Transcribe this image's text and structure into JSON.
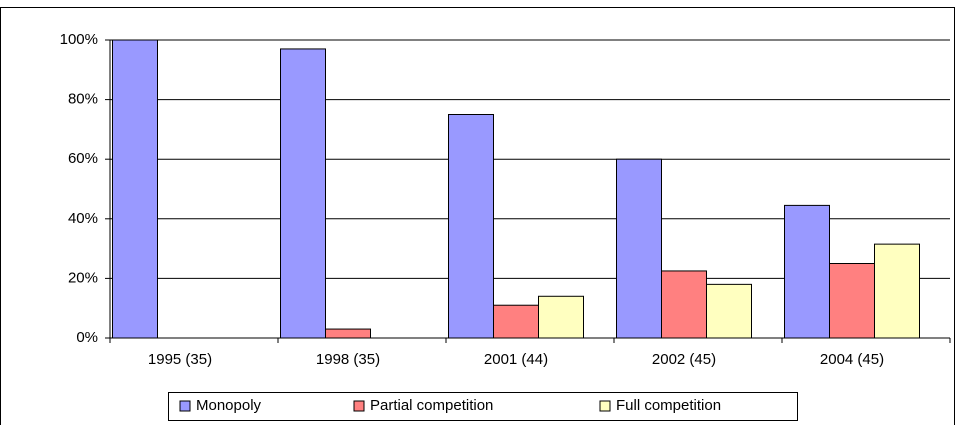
{
  "chart_data": {
    "type": "bar",
    "categories": [
      "1995 (35)",
      "1998 (35)",
      "2001 (44)",
      "2002 (45)",
      "2004 (45)"
    ],
    "series": [
      {
        "name": "Monopoly",
        "color": "#9999ff",
        "values": [
          100,
          97,
          75,
          60,
          44.5
        ]
      },
      {
        "name": "Partial competition",
        "color": "#ff8080",
        "values": [
          0,
          3,
          11,
          22.5,
          25
        ]
      },
      {
        "name": "Full competition",
        "color": "#ffffc0",
        "values": [
          0,
          0,
          14,
          18,
          31.5
        ]
      }
    ],
    "ylim": [
      0,
      100
    ],
    "yticks": [
      {
        "value": 0,
        "label": "0%"
      },
      {
        "value": 20,
        "label": "20%"
      },
      {
        "value": 40,
        "label": "40%"
      },
      {
        "value": 60,
        "label": "60%"
      },
      {
        "value": 80,
        "label": "80%"
      },
      {
        "value": 100,
        "label": "100%"
      }
    ],
    "grid": true,
    "legend": "bottom"
  }
}
